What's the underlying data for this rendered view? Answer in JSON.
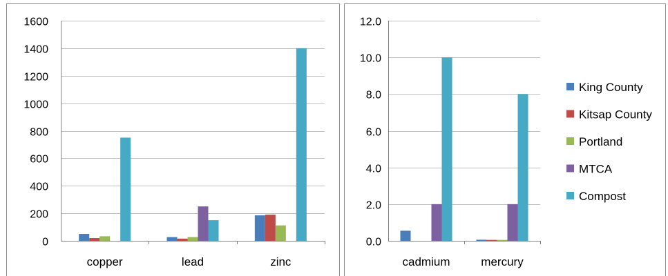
{
  "colors": {
    "frame": "#8a8a8a",
    "grid": "#bfbfbf",
    "axis": "#7f7f7f"
  },
  "chart_data": [
    {
      "type": "bar",
      "categories": [
        "copper",
        "lead",
        "zinc"
      ],
      "ylim": [
        0,
        1600
      ],
      "yticks": [
        "0",
        "200",
        "400",
        "600",
        "800",
        "1000",
        "1200",
        "1400",
        "1600"
      ],
      "tick_values": [
        0,
        200,
        400,
        600,
        800,
        1000,
        1200,
        1400,
        1600
      ],
      "series": [
        {
          "name": "King County",
          "color": "#4a7ebb",
          "values": [
            50,
            27,
            185
          ]
        },
        {
          "name": "Kitsap County",
          "color": "#be4b48",
          "values": [
            20,
            16,
            190
          ]
        },
        {
          "name": "Portland",
          "color": "#98b954",
          "values": [
            33,
            27,
            112
          ]
        },
        {
          "name": "MTCA",
          "color": "#7d60a0",
          "values": [
            0,
            250,
            0
          ]
        },
        {
          "name": "Compost",
          "color": "#46aac5",
          "values": [
            750,
            150,
            1400
          ]
        }
      ],
      "title": "",
      "xlabel": "",
      "ylabel": "",
      "grid": true,
      "legend": "none"
    },
    {
      "type": "bar",
      "categories": [
        "cadmium",
        "mercury"
      ],
      "ylim": [
        0,
        12
      ],
      "yticks": [
        "0.0",
        "2.0",
        "4.0",
        "6.0",
        "8.0",
        "10.0",
        "12.0"
      ],
      "tick_values": [
        0,
        2,
        4,
        6,
        8,
        10,
        12
      ],
      "series": [
        {
          "name": "King County",
          "color": "#4a7ebb",
          "values": [
            0.55,
            0.06
          ]
        },
        {
          "name": "Kitsap County",
          "color": "#be4b48",
          "values": [
            0,
            0.05
          ]
        },
        {
          "name": "Portland",
          "color": "#98b954",
          "values": [
            0,
            0.05
          ]
        },
        {
          "name": "MTCA",
          "color": "#7d60a0",
          "values": [
            2,
            2
          ]
        },
        {
          "name": "Compost",
          "color": "#46aac5",
          "values": [
            10,
            8
          ]
        }
      ],
      "title": "",
      "xlabel": "",
      "ylabel": "",
      "grid": true,
      "legend": "right"
    }
  ]
}
